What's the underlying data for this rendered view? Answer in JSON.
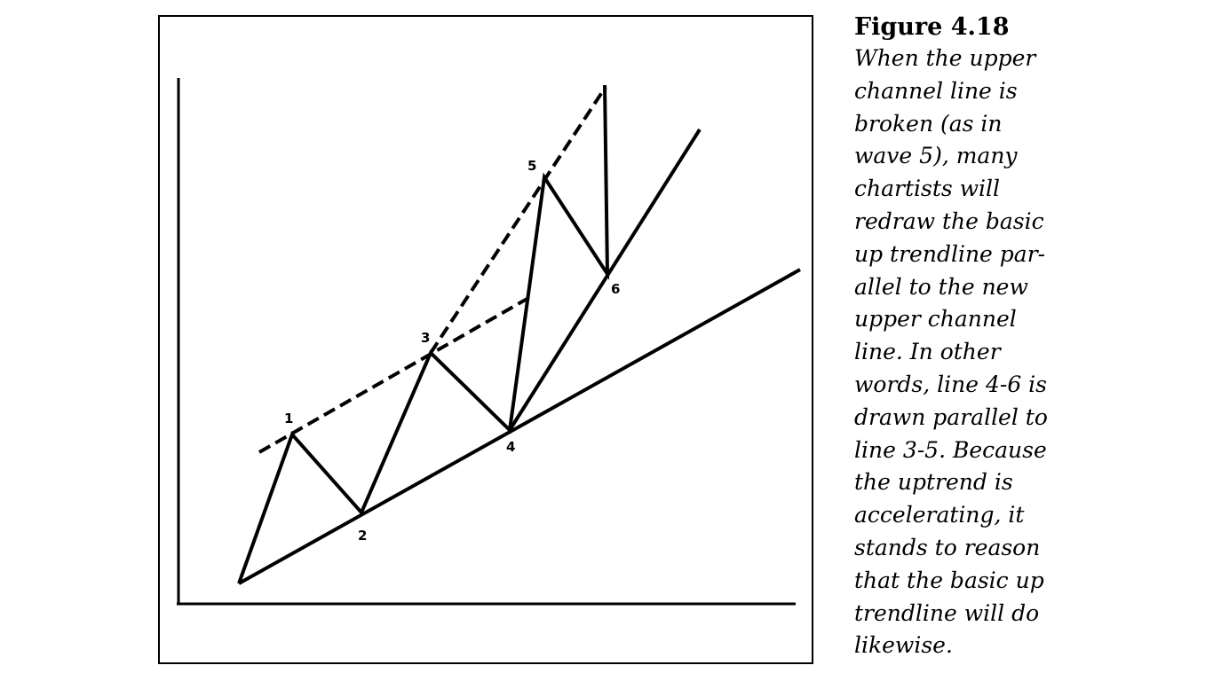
{
  "figure": {
    "point_labels": [
      "1",
      "2",
      "3",
      "4",
      "5",
      "6"
    ],
    "colors": {
      "stroke": "#000000",
      "background": "#ffffff"
    }
  },
  "caption": {
    "title": "Figure 4.18",
    "lines": [
      "When the upper",
      "channel line is",
      "broken (as in",
      "wave 5), many",
      "chartists will",
      "redraw the basic",
      "up trendline par-",
      "allel to the new",
      "upper channel",
      "line. In other",
      "words, line 4-6 is",
      "drawn parallel to",
      "line 3-5. Because",
      "the uptrend is",
      "accelerating, it",
      "stands to reason",
      "that the basic up",
      "trendline will do",
      "likewise."
    ]
  }
}
